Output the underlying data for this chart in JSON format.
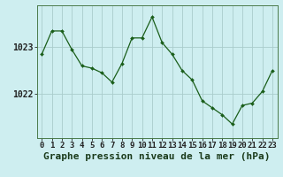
{
  "x": [
    0,
    1,
    2,
    3,
    4,
    5,
    6,
    7,
    8,
    9,
    10,
    11,
    12,
    13,
    14,
    15,
    16,
    17,
    18,
    19,
    20,
    21,
    22,
    23
  ],
  "y": [
    1022.85,
    1023.35,
    1023.35,
    1022.95,
    1022.6,
    1022.55,
    1022.45,
    1022.25,
    1022.65,
    1023.2,
    1023.2,
    1023.65,
    1023.1,
    1022.85,
    1022.5,
    1022.3,
    1021.85,
    1021.7,
    1021.55,
    1021.35,
    1021.75,
    1021.8,
    1022.05,
    1022.5
  ],
  "line_color": "#1a5e1a",
  "marker_color": "#1a5e1a",
  "bg_color": "#ceeef0",
  "grid_color": "#aacccc",
  "title": "Graphe pression niveau de la mer (hPa)",
  "ylabel_ticks": [
    1022,
    1023
  ],
  "xlim": [
    -0.5,
    23.5
  ],
  "ylim": [
    1021.05,
    1023.9
  ],
  "xlabel_labels": [
    "0",
    "1",
    "2",
    "3",
    "4",
    "5",
    "6",
    "7",
    "8",
    "9",
    "10",
    "11",
    "12",
    "13",
    "14",
    "15",
    "16",
    "17",
    "18",
    "19",
    "20",
    "21",
    "22",
    "23"
  ],
  "title_fontsize": 8,
  "tick_fontsize": 6.5,
  "border_color": "#4a7a4a"
}
